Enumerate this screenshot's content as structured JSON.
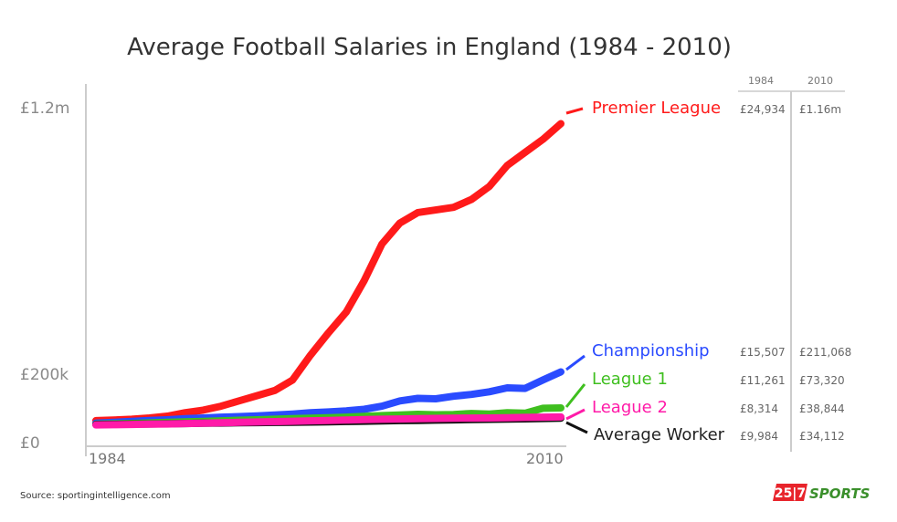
{
  "chart_data": {
    "type": "line",
    "title": "Average Football Salaries in England (1984 - 2010)",
    "x": [
      1984,
      1985,
      1986,
      1987,
      1988,
      1989,
      1990,
      1991,
      1992,
      1993,
      1994,
      1995,
      1996,
      1997,
      1998,
      1999,
      2000,
      2001,
      2002,
      2003,
      2004,
      2005,
      2006,
      2007,
      2008,
      2009,
      2010
    ],
    "x_tick_labels": [
      "1984",
      "2010"
    ],
    "y_tick_labels": [
      "£1.2m",
      "£200k",
      "£0"
    ],
    "ylim": [
      0,
      1200000
    ],
    "series": [
      {
        "name": "Premier League",
        "color": "#ff1a1a",
        "values": [
          24934,
          27000,
          30000,
          35000,
          42000,
          55000,
          65000,
          80000,
          100000,
          120000,
          140000,
          180000,
          275000,
          360000,
          440000,
          560000,
          700000,
          780000,
          820000,
          830000,
          840000,
          870000,
          920000,
          1000000,
          1050000,
          1100000,
          1160000
        ],
        "val_1984": "£24,934",
        "val_2010": "£1.16m"
      },
      {
        "name": "Championship",
        "color": "#2a4bff",
        "values": [
          15507,
          18000,
          22000,
          25000,
          28000,
          32000,
          35000,
          38000,
          40000,
          43000,
          46000,
          50000,
          55000,
          58000,
          62000,
          68000,
          80000,
          100000,
          110000,
          108000,
          118000,
          125000,
          135000,
          150000,
          148000,
          180000,
          211068
        ],
        "val_1984": "£15,507",
        "val_2010": "£211,068"
      },
      {
        "name": "League 1",
        "color": "#3fbf1f",
        "values": [
          11261,
          12500,
          14000,
          16000,
          18000,
          20000,
          22000,
          24000,
          26000,
          28000,
          30000,
          32000,
          34000,
          36000,
          38000,
          41000,
          44000,
          46000,
          49000,
          47000,
          48000,
          52000,
          50000,
          55000,
          53000,
          72000,
          73320
        ],
        "val_1984": "£11,261",
        "val_2010": "£73,320"
      },
      {
        "name": "League 2",
        "color": "#ff1aa8",
        "values": [
          8314,
          9000,
          10000,
          11000,
          12000,
          13500,
          15000,
          16500,
          18000,
          19500,
          21000,
          22500,
          24000,
          25500,
          27000,
          28500,
          30000,
          31000,
          32000,
          33000,
          34000,
          34500,
          35000,
          36000,
          37000,
          38000,
          38844
        ],
        "val_1984": "£8,314",
        "val_2010": "£38,844"
      },
      {
        "name": "Average Worker",
        "color": "#111111",
        "values": [
          9984,
          10500,
          11000,
          11700,
          12500,
          13500,
          14500,
          15500,
          16500,
          17200,
          17900,
          18500,
          19300,
          20200,
          21200,
          22300,
          23500,
          24700,
          25500,
          26500,
          27600,
          28500,
          29500,
          30500,
          31500,
          32800,
          34112
        ],
        "val_1984": "£9,984",
        "val_2010": "£34,112"
      }
    ],
    "table_header": {
      "col1": "1984",
      "col2": "2010"
    }
  },
  "footer": {
    "source": "Source: sportingintelligence.com",
    "logo_number": "25|7",
    "logo_word": "SPORTS"
  },
  "colors": {
    "axis": "#cccccc",
    "logo_red": "#e8242b",
    "logo_green": "#3a8f2b"
  }
}
